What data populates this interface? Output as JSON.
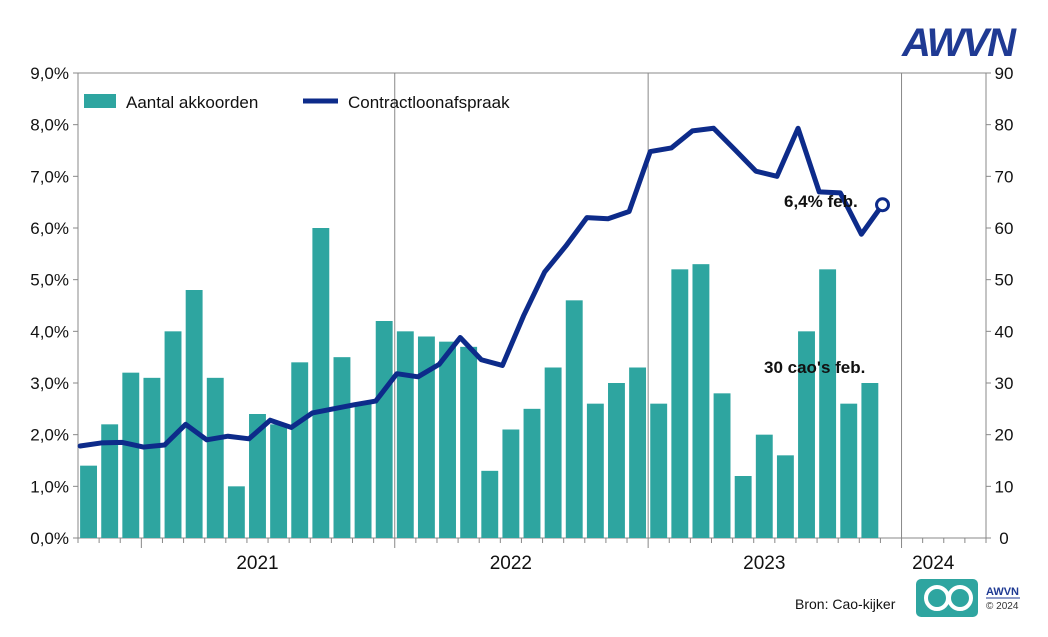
{
  "brand": {
    "name": "AWVN",
    "small_name": "AWVN",
    "copyright": "© 2024"
  },
  "source": "Bron: Cao-kijker",
  "colors": {
    "bars": "#2ea5a0",
    "line": "#0d2b8a",
    "brand": "#1f3a93",
    "frame": "#777777"
  },
  "chart_data": {
    "type": "bar+line",
    "title": "",
    "legend": {
      "position": "top-left",
      "entries": [
        "Aantal akkoorden",
        "Contractloonafspraak"
      ]
    },
    "left_axis": {
      "ylim": [
        0,
        9
      ],
      "ticks": [
        "0,0%",
        "1,0%",
        "2,0%",
        "3,0%",
        "4,0%",
        "5,0%",
        "6,0%",
        "7,0%",
        "8,0%",
        "9,0%"
      ]
    },
    "right_axis": {
      "ylim": [
        0,
        90
      ],
      "ticks": [
        "0",
        "10",
        "20",
        "30",
        "40",
        "50",
        "60",
        "70",
        "80",
        "90"
      ]
    },
    "years": [
      "2021",
      "2022",
      "2023",
      "2024"
    ],
    "months_per_year": 12,
    "first_month": "2020-10",
    "total_months": 43,
    "series": [
      {
        "name": "Aantal akkoorden",
        "type": "bar",
        "axis": "right",
        "values": [
          14,
          22,
          32,
          31,
          40,
          48,
          31,
          10,
          24,
          22,
          34,
          60,
          35,
          26,
          42,
          40,
          39,
          38,
          37,
          13,
          21,
          25,
          33,
          46,
          26,
          30,
          33,
          26,
          52,
          53,
          28,
          12,
          20,
          16,
          40,
          52,
          26,
          30
        ]
      },
      {
        "name": "Contractloonafspraak",
        "type": "line",
        "axis": "left",
        "values": [
          1.78,
          1.84,
          1.85,
          1.76,
          1.8,
          2.2,
          1.9,
          1.97,
          1.92,
          2.28,
          2.14,
          2.42,
          2.5,
          2.58,
          2.65,
          3.18,
          3.12,
          3.36,
          3.88,
          3.45,
          3.34,
          4.3,
          5.15,
          5.65,
          6.2,
          6.18,
          6.32,
          7.48,
          7.55,
          7.88,
          7.93,
          7.52,
          7.1,
          7.0,
          7.93,
          6.7,
          6.68,
          5.88,
          6.45
        ]
      }
    ],
    "annotations": [
      {
        "text": "6,4% feb.",
        "series": "Contractloonafspraak"
      },
      {
        "text": "30 cao's feb.",
        "series": "Aantal akkoorden"
      }
    ]
  }
}
